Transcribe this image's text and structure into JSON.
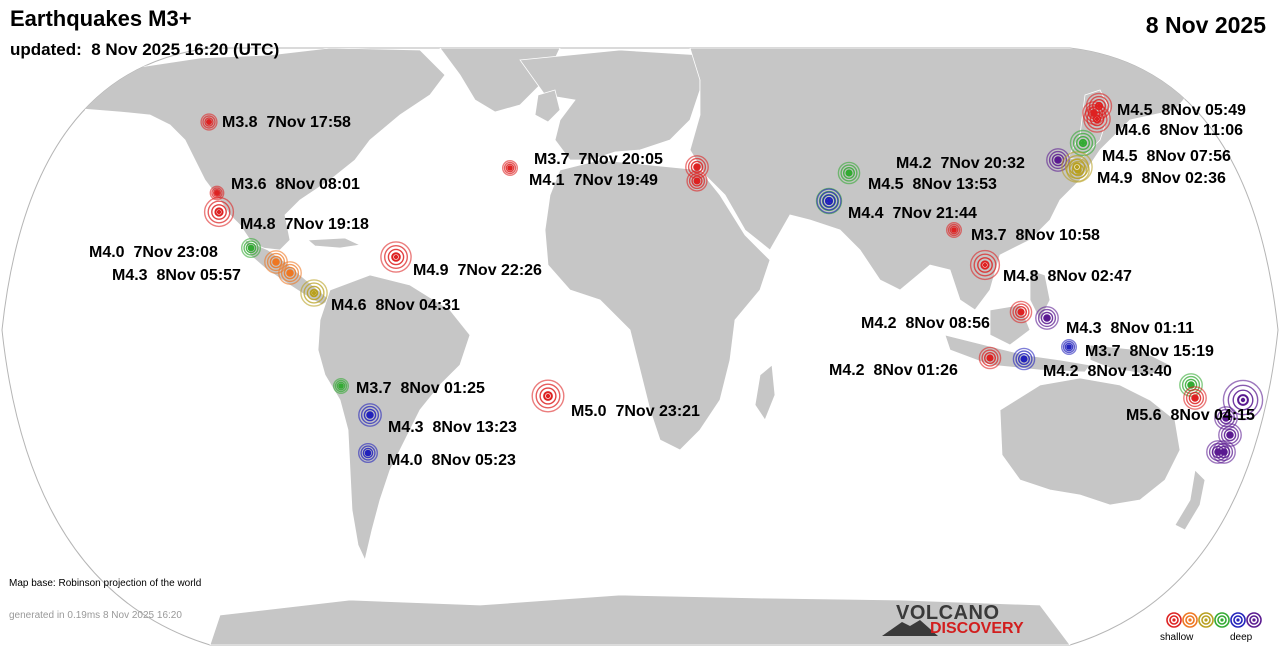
{
  "header": {
    "title": "Earthquakes M3+",
    "updated": "updated:  8 Nov 2025 16:20 (UTC)",
    "date": "8 Nov 2025"
  },
  "footer": {
    "map_base": "Map base: Robinson projection of the world",
    "generated": "generated in 0.19ms  8 Nov 2025 16:20",
    "logo_top": "VOLCANO",
    "logo_bottom": "DISCOVERY"
  },
  "legend": {
    "shallow_label": "shallow",
    "deep_label": "deep",
    "depth_colors": [
      "#dd2222",
      "#ee7722",
      "#b8a020",
      "#33aa33",
      "#2222bb",
      "#5a1a90"
    ]
  },
  "colors": {
    "land": "#c6c6c6",
    "ocean": "#ffffff",
    "globe_outline": "#b5b5b5",
    "label_text": "#000000"
  },
  "quakes": [
    {
      "label": "M3.8  7Nov 17:58",
      "mag": 3.8,
      "depth": "red"
    },
    {
      "label": "M3.6  8Nov 08:01",
      "mag": 3.6,
      "depth": "red"
    },
    {
      "label": "M4.8  7Nov 19:18",
      "mag": 4.8,
      "depth": "red"
    },
    {
      "label": "M4.0  7Nov 23:08",
      "mag": 4.0,
      "depth": "green"
    },
    {
      "label": "M4.3  8Nov 05:57",
      "mag": 4.3,
      "depth": "orange"
    },
    {
      "label": "M4.9  7Nov 22:26",
      "mag": 4.9,
      "depth": "red"
    },
    {
      "label": "M4.6  8Nov 04:31",
      "mag": 4.6,
      "depth": "yellow"
    },
    {
      "label": "M3.7  8Nov 01:25",
      "mag": 3.7,
      "depth": "green"
    },
    {
      "label": "M4.3  8Nov 13:23",
      "mag": 4.3,
      "depth": "blue"
    },
    {
      "label": "M4.0  8Nov 05:23",
      "mag": 4.0,
      "depth": "blue"
    },
    {
      "label": "M5.0  7Nov 23:21",
      "mag": 5.0,
      "depth": "red"
    },
    {
      "label": "M3.7  7Nov 20:05",
      "mag": 3.7,
      "depth": "red"
    },
    {
      "label": "M4.1  7Nov 19:49",
      "mag": 4.1,
      "depth": "red"
    },
    {
      "label": "M4.2  7Nov 20:32",
      "mag": 4.2,
      "depth": "green"
    },
    {
      "label": "M4.5  8Nov 13:53",
      "mag": 4.5,
      "depth": "green"
    },
    {
      "label": "M4.4  7Nov 21:44",
      "mag": 4.4,
      "depth": "blue"
    },
    {
      "label": "M3.7  8Nov 10:58",
      "mag": 3.7,
      "depth": "red"
    },
    {
      "label": "M4.8  8Nov 02:47",
      "mag": 4.8,
      "depth": "red"
    },
    {
      "label": "M4.5  8Nov 05:49",
      "mag": 4.5,
      "depth": "red"
    },
    {
      "label": "M4.6  8Nov 11:06",
      "mag": 4.6,
      "depth": "red"
    },
    {
      "label": "M4.5  8Nov 07:56",
      "mag": 4.5,
      "depth": "green"
    },
    {
      "label": "M4.9  8Nov 02:36",
      "mag": 4.9,
      "depth": "yellow"
    },
    {
      "label": "M4.2  8Nov 08:56",
      "mag": 4.2,
      "depth": "red"
    },
    {
      "label": "M4.3  8Nov 01:11",
      "mag": 4.3,
      "depth": "purple"
    },
    {
      "label": "M3.7  8Nov 15:19",
      "mag": 3.7,
      "depth": "blue"
    },
    {
      "label": "M4.2  8Nov 01:26",
      "mag": 4.2,
      "depth": "red"
    },
    {
      "label": "M4.2  8Nov 13:40",
      "mag": 4.2,
      "depth": "blue"
    },
    {
      "label": "M5.6  8Nov 04:15",
      "mag": 5.6,
      "depth": "purple"
    }
  ],
  "extra_markers": [
    {
      "depth": "purple"
    },
    {
      "depth": "yellow"
    },
    {
      "depth": "red"
    },
    {
      "depth": "orange"
    },
    {
      "depth": "red"
    },
    {
      "depth": "green"
    },
    {
      "depth": "red"
    },
    {
      "depth": "purple"
    },
    {
      "depth": "purple"
    },
    {
      "depth": "purple"
    },
    {
      "depth": "purple"
    }
  ]
}
